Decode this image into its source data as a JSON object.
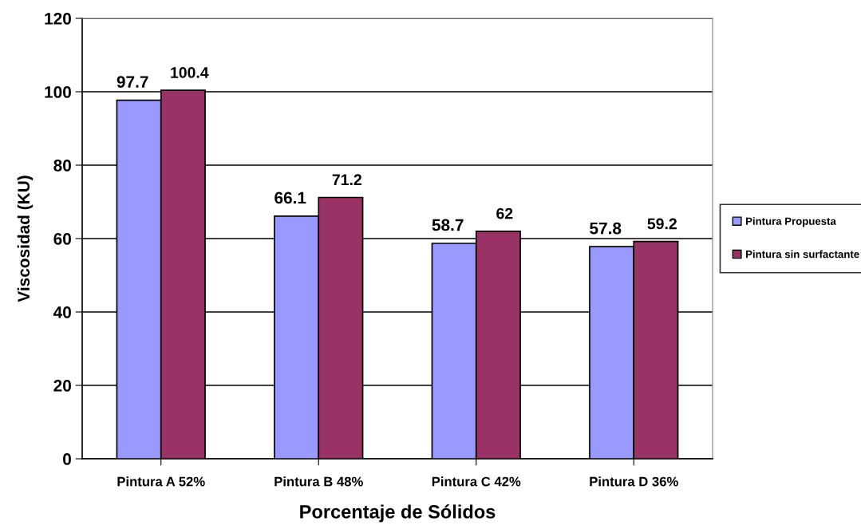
{
  "chart_data": {
    "type": "bar",
    "xlabel": "Porcentaje de Sólidos",
    "ylabel": "Viscosidad (KU)",
    "categories": [
      "Pintura A 52%",
      "Pintura B 48%",
      "Pintura C 42%",
      "Pintura D 36%"
    ],
    "series": [
      {
        "name": "Pintura Propuesta",
        "color": "#9999ff",
        "values": [
          97.7,
          66.1,
          58.7,
          57.8
        ]
      },
      {
        "name": "Pintura sin surfactante",
        "color": "#993366",
        "values": [
          100.4,
          71.2,
          62,
          59.2
        ]
      }
    ],
    "ylim": [
      0,
      120
    ],
    "yticks": [
      0,
      20,
      40,
      60,
      80,
      100,
      120
    ],
    "grid": "y",
    "legend": "right",
    "data_labels": true
  }
}
